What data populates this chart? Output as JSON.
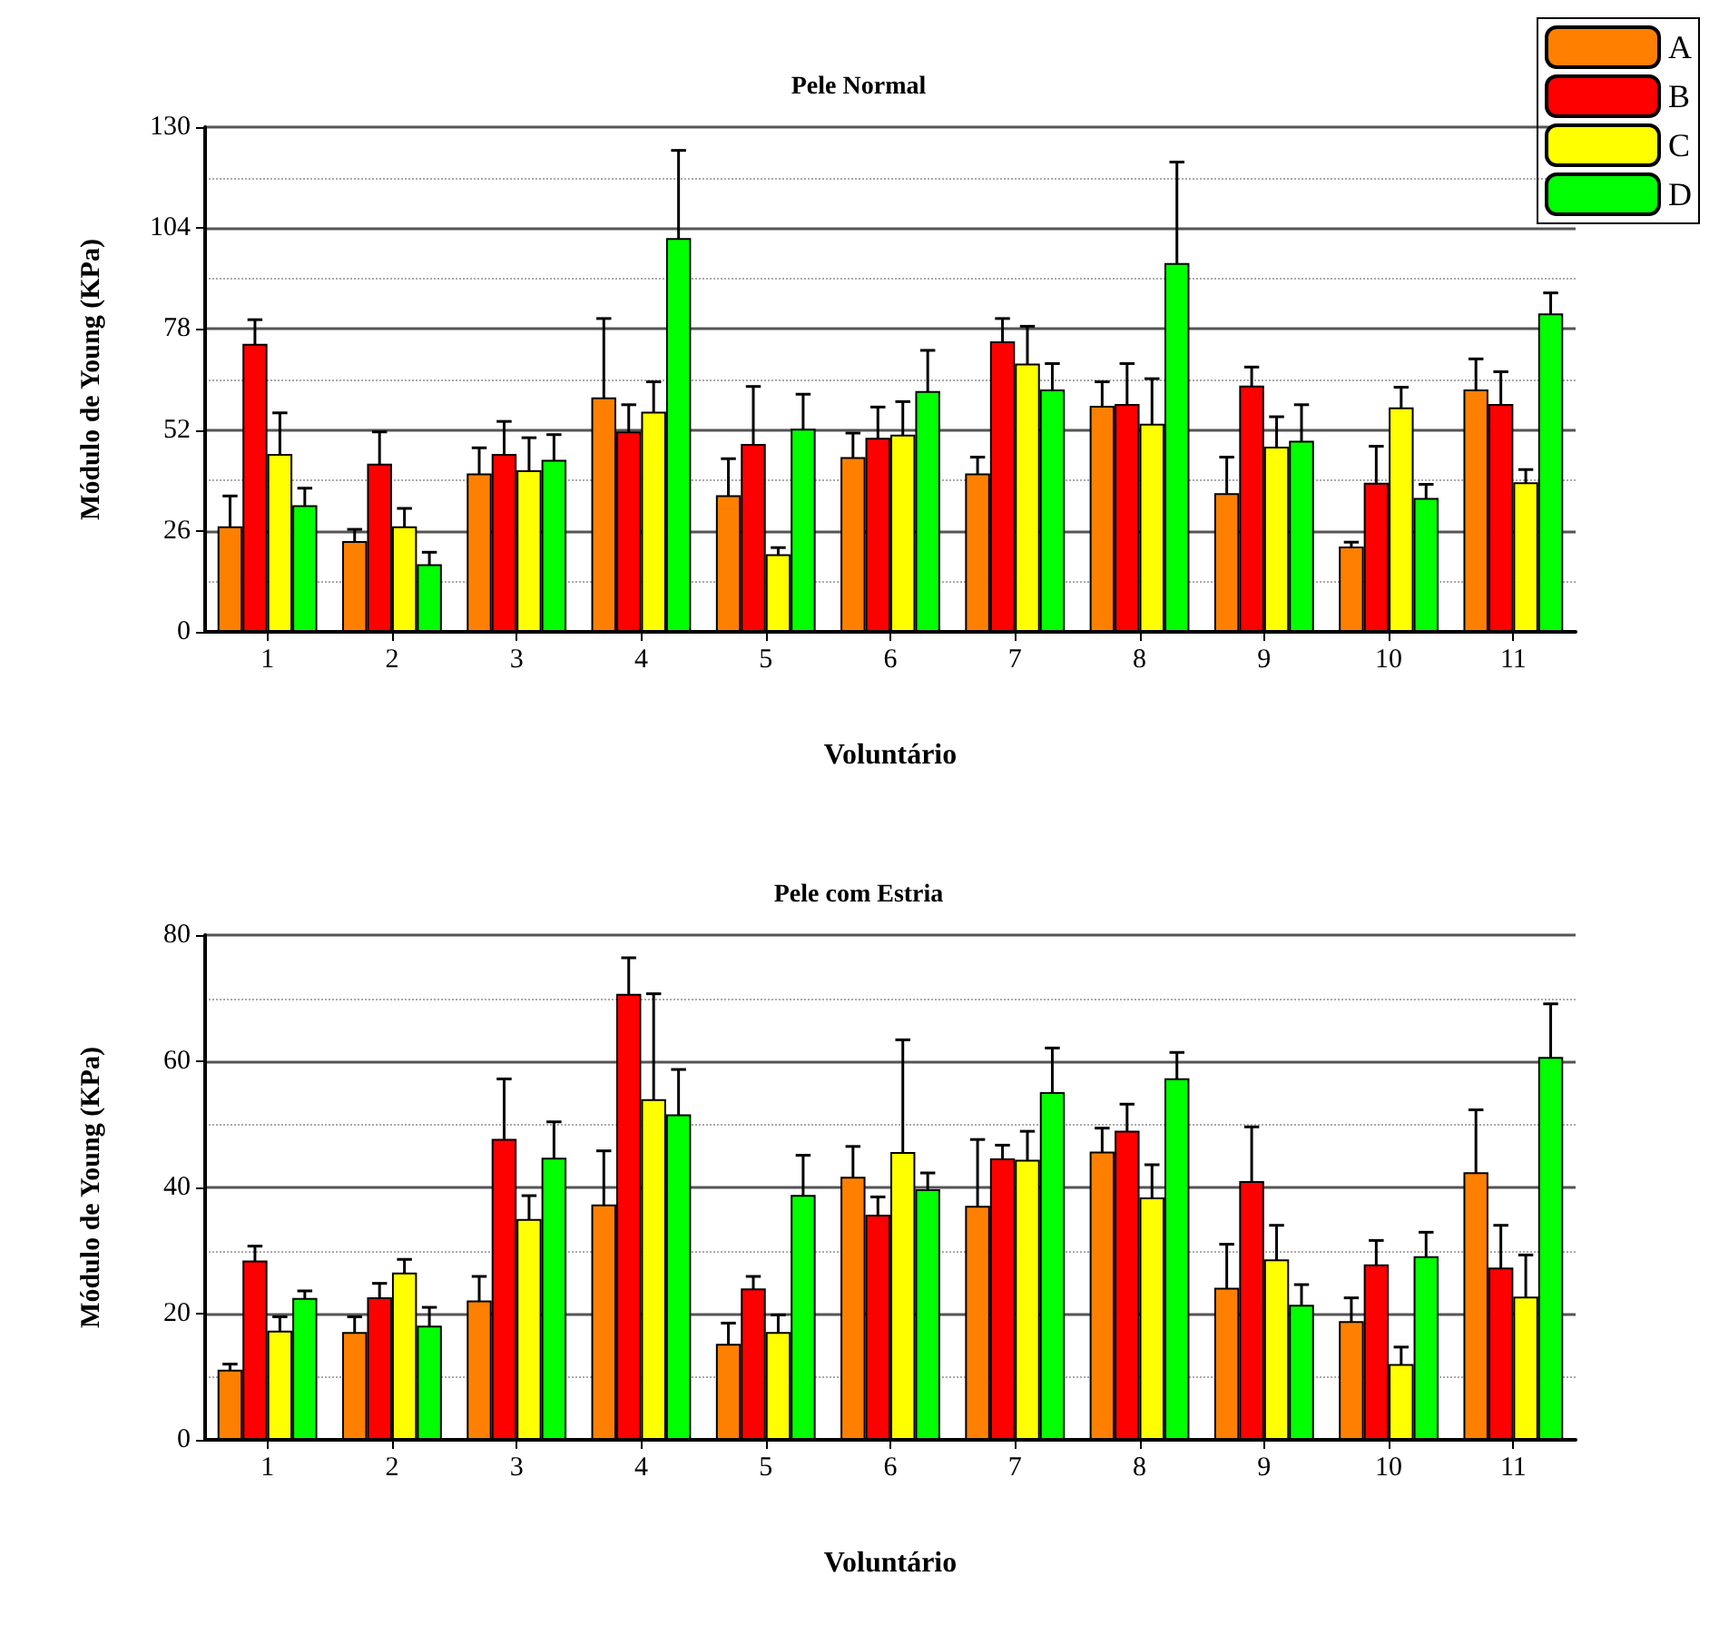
{
  "chart_data": [
    {
      "type": "bar",
      "title": "Pele Normal",
      "xlabel": "Voluntário",
      "ylabel": "Módulo de Young (KPa)",
      "categories": [
        "1",
        "2",
        "3",
        "4",
        "5",
        "6",
        "7",
        "8",
        "9",
        "10",
        "11"
      ],
      "ylim": [
        0,
        130
      ],
      "yticks": [
        0,
        26,
        52,
        78,
        104,
        130
      ],
      "grid": "y",
      "legend": "top right",
      "series": [
        {
          "name": "A",
          "color": "#ff8000",
          "values": [
            27.2,
            23.4,
            40.8,
            60.4,
            35.2,
            45,
            40.8,
            58.2,
            35.7,
            22,
            62.4
          ],
          "errors": [
            7.8,
            3,
            6.6,
            20.3,
            9.4,
            6.2,
            4.2,
            6.2,
            9.3,
            1.1,
            7.9
          ]
        },
        {
          "name": "B",
          "color": "#ff0000",
          "values": [
            74.2,
            43.3,
            45.8,
            51.6,
            48.4,
            50,
            74.8,
            58.7,
            63.4,
            38.4,
            58.7
          ],
          "errors": [
            6.2,
            8.2,
            8.4,
            6.9,
            14.8,
            7.9,
            5.9,
            10.4,
            4.8,
            9.4,
            8.3
          ]
        },
        {
          "name": "C",
          "color": "#ffff00",
          "values": [
            45.8,
            27.2,
            41.6,
            56.7,
            20,
            50.8,
            69.1,
            53.6,
            47.7,
            57.8,
            38.5
          ],
          "errors": [
            10.6,
            4.6,
            8.4,
            7.7,
            1.7,
            8.5,
            9.6,
            11.6,
            7.7,
            5.2,
            3.3
          ]
        },
        {
          "name": "D",
          "color": "#00ff00",
          "values": [
            32.6,
            17.4,
            44.3,
            101.4,
            52.3,
            62,
            62.4,
            95,
            49.2,
            34.5,
            82
          ],
          "errors": [
            4.4,
            3.1,
            6.5,
            22.6,
            8.9,
            10.5,
            6.7,
            26,
            9.3,
            3.5,
            5.3
          ]
        }
      ]
    },
    {
      "type": "bar",
      "title": "Pele com Estria",
      "xlabel": "Voluntário",
      "ylabel": "Módulo de Young (KPa)",
      "categories": [
        "1",
        "2",
        "3",
        "4",
        "5",
        "6",
        "7",
        "8",
        "9",
        "10",
        "11"
      ],
      "ylim": [
        0,
        80
      ],
      "yticks": [
        0,
        20,
        40,
        60,
        80
      ],
      "grid": "y",
      "series": [
        {
          "color": "#ff8000",
          "values": [
            11.1,
            17.1,
            22.1,
            37.3,
            15.2,
            41.7,
            37.1,
            45.7,
            24.1,
            18.8,
            42.4
          ],
          "errors": [
            0.9,
            2.4,
            3.8,
            8.5,
            3.3,
            4.8,
            10.5,
            3.7,
            6.9,
            3.7,
            9.9
          ]
        },
        {
          "color": "#ff0000",
          "values": [
            28.4,
            22.6,
            47.7,
            70.7,
            24,
            35.7,
            44.6,
            49,
            41,
            27.8,
            27.3
          ],
          "errors": [
            2.3,
            2.2,
            9.5,
            5.7,
            1.9,
            2.8,
            2.1,
            4.2,
            8.6,
            3.8,
            6.7
          ]
        },
        {
          "color": "#ffff00",
          "values": [
            17.3,
            26.5,
            35,
            54,
            17.1,
            45.6,
            44.4,
            38.4,
            28.6,
            12,
            22.7
          ],
          "errors": [
            2.2,
            2.1,
            3.7,
            16.7,
            2.7,
            17.8,
            4.5,
            5.2,
            5.4,
            2.7,
            6.6
          ]
        },
        {
          "color": "#00ff00",
          "values": [
            22.5,
            18.1,
            44.7,
            51.6,
            38.8,
            39.7,
            55.1,
            57.3,
            21.4,
            29.1,
            60.7
          ],
          "errors": [
            1.1,
            2.9,
            5.7,
            7.1,
            6.3,
            2.6,
            7,
            4.1,
            3.2,
            3.8,
            8.4
          ]
        }
      ]
    }
  ]
}
